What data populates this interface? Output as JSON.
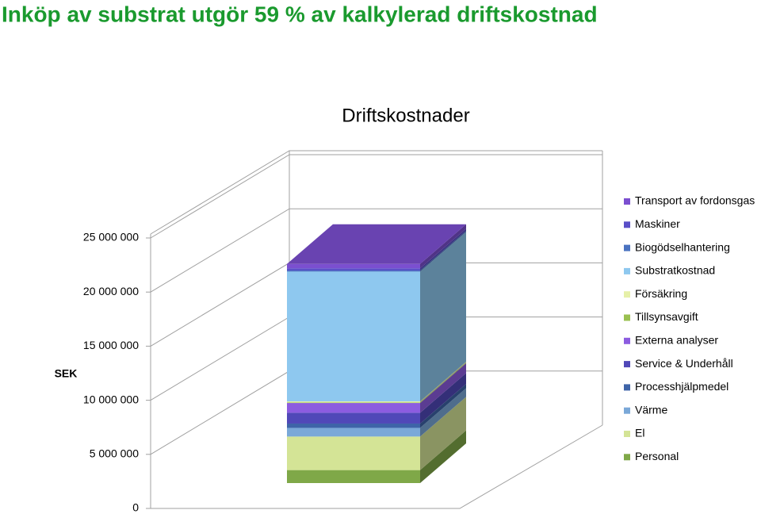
{
  "heading": "Inköp av substrat utgör 59 % av kalkylerad driftskostnad",
  "chart_data": {
    "type": "bar3d-stacked",
    "title": "Driftskostnader",
    "y_label": "SEK",
    "categories": [
      null
    ],
    "ylim": [
      0,
      25000000
    ],
    "yticks": [
      0,
      {
        "value": 5000000,
        "label": "5 000 000"
      },
      {
        "value": 10000000,
        "label": "10 000 000"
      },
      {
        "value": 15000000,
        "label": "15 000 000"
      },
      {
        "value": 20000000,
        "label": "20 000 000"
      },
      {
        "value": 25000000,
        "label": "25 000 000"
      }
    ],
    "grid": true,
    "legend": "right",
    "series": [
      {
        "name": "Personal",
        "color": "#7fa848",
        "values": [
          1200000
        ]
      },
      {
        "name": "El",
        "color": "#d4e496",
        "values": [
          3100000
        ]
      },
      {
        "name": "Värme",
        "color": "#7aa8d8",
        "values": [
          800000
        ]
      },
      {
        "name": "Processhjälpmedel",
        "color": "#3e64a8",
        "values": [
          400000
        ]
      },
      {
        "name": "Service & Underhåll",
        "color": "#5048b8",
        "values": [
          1000000
        ]
      },
      {
        "name": "Externa analyser",
        "color": "#8c5ce0",
        "values": [
          900000
        ]
      },
      {
        "name": "Tillsynsavgift",
        "color": "#9ac050",
        "values": [
          50000
        ]
      },
      {
        "name": "Försäkring",
        "color": "#e6f0a8",
        "values": [
          100000
        ]
      },
      {
        "name": "Substratkostnad",
        "color": "#8ec8ef",
        "values": [
          12000000
        ]
      },
      {
        "name": "Biogödselhantering",
        "color": "#4a72c0",
        "values": [
          100000
        ]
      },
      {
        "name": "Maskiner",
        "color": "#5a4fc8",
        "values": [
          200000
        ]
      },
      {
        "name": "Transport av fordonsgas",
        "color": "#7b4fd0",
        "values": [
          400000
        ]
      }
    ]
  }
}
